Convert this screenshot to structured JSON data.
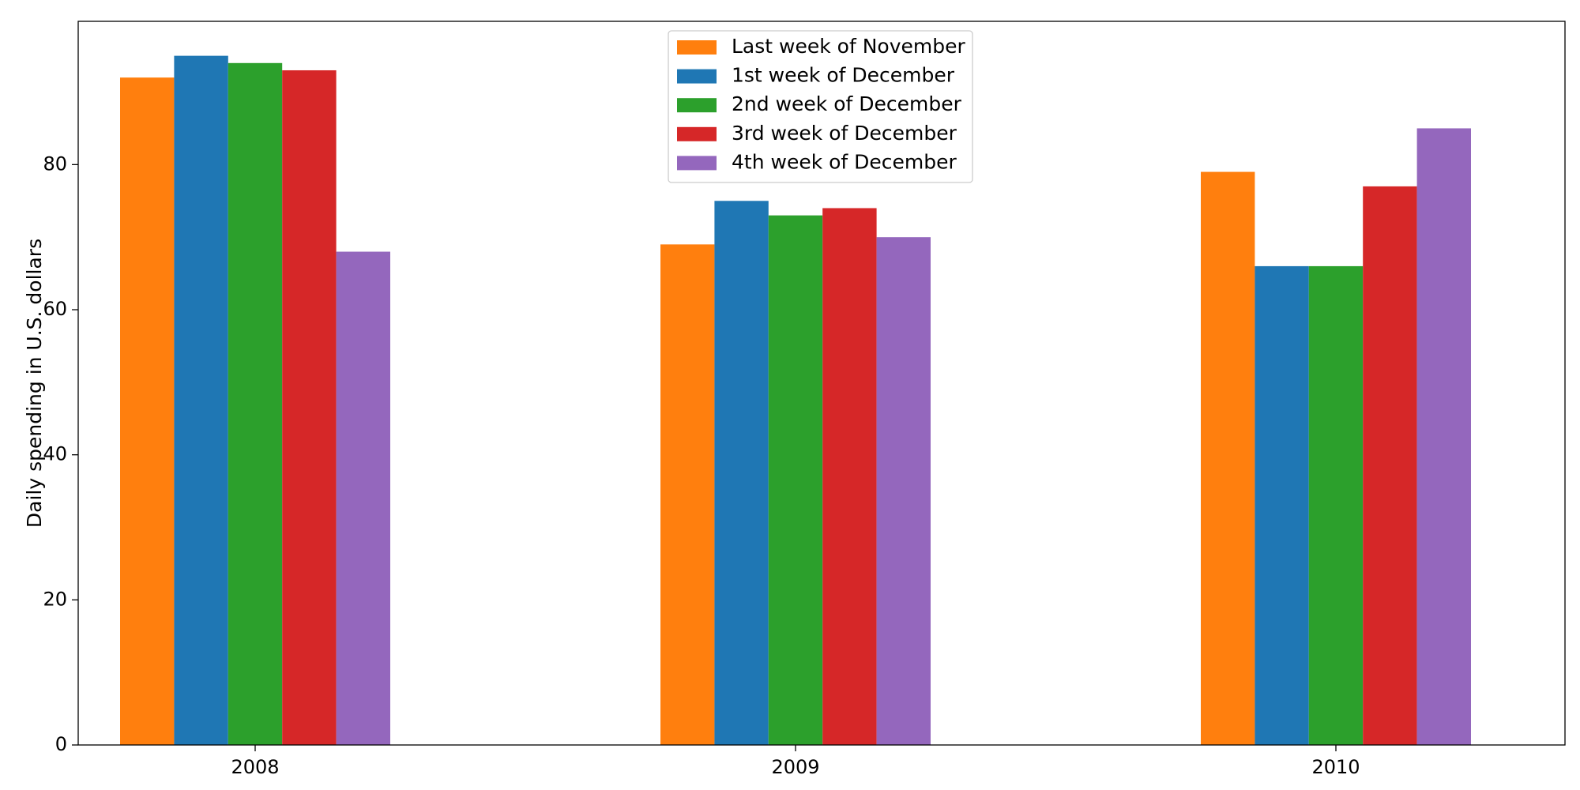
{
  "chart_data": {
    "type": "bar",
    "title": "",
    "xlabel": "",
    "ylabel": "Daily spending in U.S. dollars",
    "categories": [
      "2008",
      "2009",
      "2010"
    ],
    "series": [
      {
        "name": "Last week of November",
        "color": "#ff7f0e",
        "values": [
          92,
          69,
          79
        ]
      },
      {
        "name": "1st week of December",
        "color": "#1f77b4",
        "values": [
          95,
          75,
          66
        ]
      },
      {
        "name": "2nd week of December",
        "color": "#2ca02c",
        "values": [
          94,
          73,
          66
        ]
      },
      {
        "name": "3rd week of December",
        "color": "#d62728",
        "values": [
          93,
          74,
          77
        ]
      },
      {
        "name": "4th week of December",
        "color": "#9467bd",
        "values": [
          68,
          70,
          85
        ]
      }
    ],
    "ylim": [
      0,
      99.75
    ],
    "yticks": [
      0,
      20,
      40,
      60,
      80
    ],
    "grid": false,
    "legend_position": "top-center"
  }
}
